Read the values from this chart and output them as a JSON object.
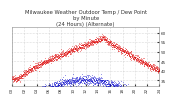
{
  "title": "Milwaukee Weather Outdoor Temp / Dew Point",
  "subtitle": "by Minute",
  "subtitle2": "(24 Hours) (Alternate)",
  "bg_color": "#ffffff",
  "plot_bg_color": "#ffffff",
  "grid_color": "#bbbbbb",
  "temp_color": "#dd0000",
  "dew_color": "#0000cc",
  "yticks": [
    35,
    40,
    45,
    50,
    55,
    60
  ],
  "ylim": [
    32,
    63
  ],
  "xlim": [
    0,
    1
  ],
  "n_points": 1440,
  "title_color": "#333333",
  "tick_color": "#333333",
  "title_fontsize": 3.8,
  "tick_fontsize": 3.0,
  "dot_size": 0.15
}
